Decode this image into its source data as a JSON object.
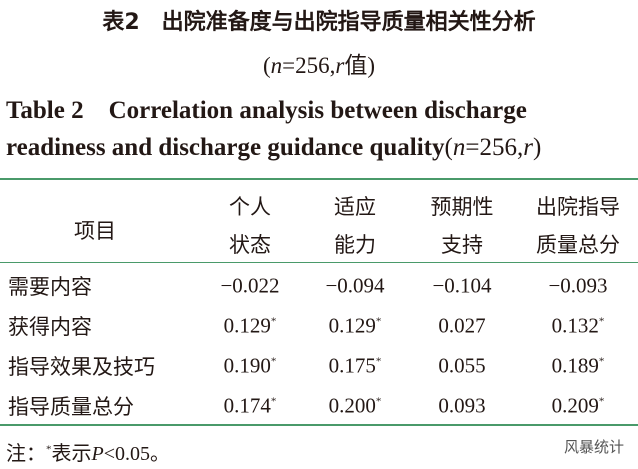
{
  "header": {
    "title_cn": "表2　出院准备度与出院指导质量相关性分析",
    "subtitle_parts": [
      {
        "text": "("
      },
      {
        "text": "n",
        "italic": true
      },
      {
        "text": "=256,"
      },
      {
        "text": "r",
        "italic": true
      },
      {
        "text": "值)"
      }
    ],
    "title_en_line1": "Table 2　Correlation analysis between discharge",
    "title_en_line2": "readiness and discharge guidance quality",
    "title_en_suffix_parts": [
      {
        "text": "("
      },
      {
        "text": "n",
        "italic": true
      },
      {
        "text": "=256,"
      },
      {
        "text": "r",
        "italic": true
      },
      {
        "text": ")"
      }
    ]
  },
  "table": {
    "columns": [
      {
        "line1": "项目"
      },
      {
        "line1": "个人",
        "line2": "状态"
      },
      {
        "line1": "适应",
        "line2": "能力"
      },
      {
        "line1": "预期性",
        "line2": "支持"
      },
      {
        "line1": "出院指导",
        "line2": "质量总分"
      }
    ],
    "rows": [
      [
        {
          "text": "需要内容"
        },
        {
          "text": "−0.022"
        },
        {
          "text": "−0.094"
        },
        {
          "text": "−0.104"
        },
        {
          "text": "−0.093"
        }
      ],
      [
        {
          "text": "获得内容"
        },
        {
          "text": "0.129",
          "sup": "*"
        },
        {
          "text": "0.129",
          "sup": "*"
        },
        {
          "text": "0.027"
        },
        {
          "text": "0.132",
          "sup": "*"
        }
      ],
      [
        {
          "text": "指导效果及技巧"
        },
        {
          "text": "0.190",
          "sup": "*"
        },
        {
          "text": "0.175",
          "sup": "*"
        },
        {
          "text": "0.055"
        },
        {
          "text": "0.189",
          "sup": "*"
        }
      ],
      [
        {
          "text": "指导质量总分"
        },
        {
          "text": "0.174",
          "sup": "*"
        },
        {
          "text": "0.200",
          "sup": "*"
        },
        {
          "text": "0.093"
        },
        {
          "text": "0.209",
          "sup": "*"
        }
      ]
    ]
  },
  "note_parts": [
    {
      "text": "注："
    },
    {
      "text": "*",
      "sup": true
    },
    {
      "text": "表示"
    },
    {
      "text": "P",
      "italic": true
    },
    {
      "text": "<0.05。"
    }
  ],
  "watermark": "风暴统计"
}
